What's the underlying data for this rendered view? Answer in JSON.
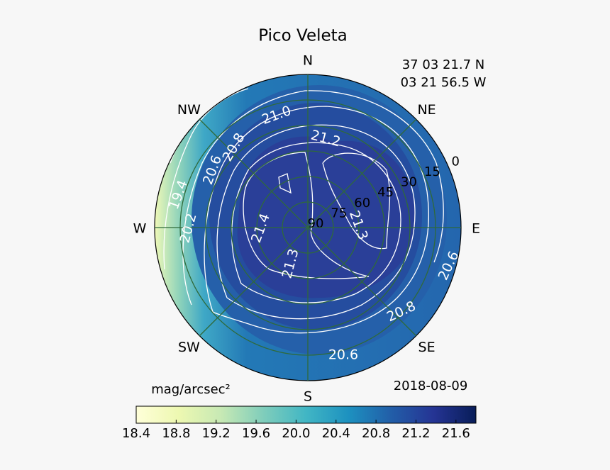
{
  "chart_data": {
    "type": "polar_contour",
    "title": "Pico Veleta",
    "annotations": [
      "37 03 21.7 N",
      "03 21 56.5 W",
      "2018-08-09"
    ],
    "theta_ticks": [
      {
        "value": 0,
        "label": "N"
      },
      {
        "value": 45,
        "label": "NE"
      },
      {
        "value": 90,
        "label": "E"
      },
      {
        "value": 135,
        "label": "SE"
      },
      {
        "value": 180,
        "label": "S"
      },
      {
        "value": 225,
        "label": "SW"
      },
      {
        "value": 270,
        "label": "W"
      },
      {
        "value": 315,
        "label": "NW"
      }
    ],
    "rlim": [
      90,
      0
    ],
    "rticks": [
      0,
      15,
      30,
      45,
      60,
      75,
      90
    ],
    "grid": true,
    "contours": {
      "values": [
        21.0,
        20.8,
        21.2,
        20.6,
        19.4,
        20.2,
        21.4,
        21.3,
        21.3,
        20.6,
        20.8,
        20.6
      ],
      "value_labels": [
        "21.0",
        "20.8",
        "21.2",
        "20.6",
        "19.4",
        "20.2",
        "21.4",
        "21.3",
        "21.3",
        "20.6",
        "20.8",
        "20.6"
      ]
    },
    "colorbar": {
      "label": "mag/arcsec²",
      "clim": [
        18.4,
        21.8
      ],
      "ticks": [
        18.4,
        18.8,
        19.2,
        19.6,
        {
          "value": 20,
          "label": "20.0"
        },
        20.4,
        20.8,
        21.2,
        21.6
      ],
      "colormap": [
        "#ffffd9",
        "#edf8b1",
        "#c7e9b4",
        "#7fcdbb",
        "#41b6c4",
        "#1d91c0",
        "#225ea8",
        "#253494",
        "#081d58"
      ]
    }
  }
}
